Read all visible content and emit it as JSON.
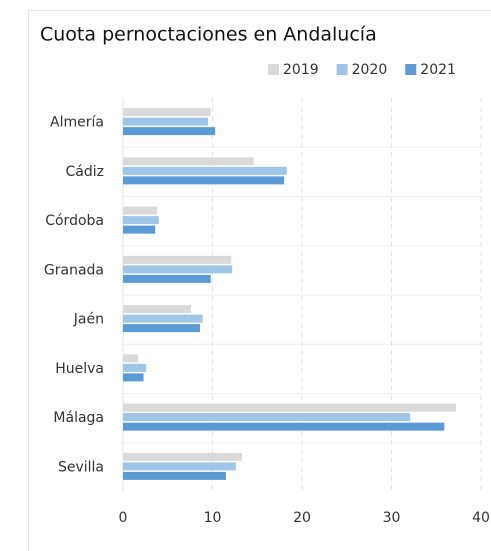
{
  "chart_data": {
    "type": "hbar",
    "title": "Cuota pernoctaciones en Andalucía",
    "categories": [
      "Almería",
      "Cádiz",
      "Córdoba",
      "Granada",
      "Jaén",
      "Huelva",
      "Málaga",
      "Sevilla"
    ],
    "series": [
      {
        "name": "2019",
        "color": "#d9d9d9",
        "values": [
          9.8,
          14.6,
          3.8,
          12.1,
          7.6,
          1.7,
          37.2,
          13.3
        ]
      },
      {
        "name": "2020",
        "color": "#9fc5e8",
        "values": [
          9.5,
          18.3,
          4.0,
          12.2,
          8.9,
          2.6,
          32.1,
          12.6
        ]
      },
      {
        "name": "2021",
        "color": "#5b9bd5",
        "values": [
          10.3,
          18.0,
          3.6,
          9.8,
          8.6,
          2.3,
          35.9,
          11.5
        ]
      }
    ],
    "xlim": [
      0,
      40
    ],
    "xticks": [
      0,
      10,
      20,
      30,
      40
    ],
    "grid": true
  }
}
